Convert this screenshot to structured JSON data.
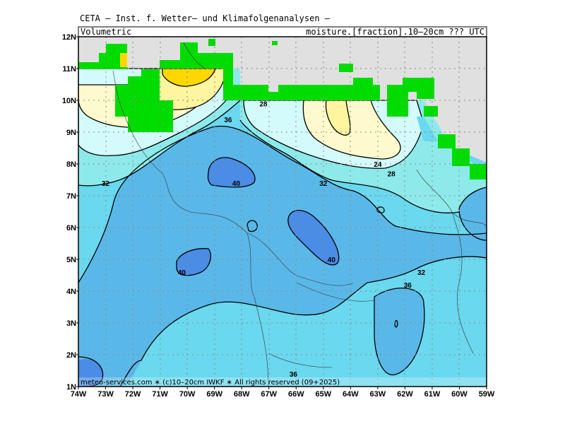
{
  "header": {
    "line1": "CETA — Inst. f. Wetter— und Klimafolgenanalysen —",
    "left_box": "Volumetric",
    "right_box": "moisture.[fraction].10–20cm ??? UTC"
  },
  "footer": "meteo-services.com ∗ (c)10–20cm IWKF ∗ All rights reserved (09+2025)",
  "axes": {
    "x_labels": [
      "74W",
      "73W",
      "72W",
      "71W",
      "70W",
      "69W",
      "68W",
      "67W",
      "66W",
      "65W",
      "64W",
      "63W",
      "62W",
      "61W",
      "60W",
      "59W"
    ],
    "y_labels": [
      "12N",
      "11N",
      "10N",
      "9N",
      "8N",
      "7N",
      "6N",
      "5N",
      "4N",
      "3N",
      "2N",
      "1N"
    ]
  },
  "contour_labels": [
    {
      "text": "28",
      "lon": -67.2,
      "lat": 9.9
    },
    {
      "text": "36",
      "lon": -68.5,
      "lat": 9.4
    },
    {
      "text": "32",
      "lon": -73.0,
      "lat": 7.4
    },
    {
      "text": "40",
      "lon": -68.2,
      "lat": 7.4
    },
    {
      "text": "32",
      "lon": -65.0,
      "lat": 7.4
    },
    {
      "text": "24",
      "lon": -63.0,
      "lat": 8.0
    },
    {
      "text": "28",
      "lon": -62.5,
      "lat": 7.7
    },
    {
      "text": "40",
      "lon": -64.7,
      "lat": 5.0
    },
    {
      "text": "40",
      "lon": -70.2,
      "lat": 4.6
    },
    {
      "text": "32",
      "lon": -61.4,
      "lat": 4.6
    },
    {
      "text": "36",
      "lon": -61.9,
      "lat": 4.2
    },
    {
      "text": "36",
      "lon": -66.1,
      "lat": 1.4
    }
  ],
  "colors": {
    "land_bg": "#e0e0e0",
    "mask_green": "#00dc00",
    "fill_24": "#fff5a0",
    "fill_20": "#ffd700",
    "fill_28": "#fffacd",
    "fill_32": "#d4fbfb",
    "fill_36a": "#8eeaea",
    "fill_36": "#6ad8ee",
    "fill_38": "#5ab8e8",
    "fill_40": "#4a8ce6"
  }
}
